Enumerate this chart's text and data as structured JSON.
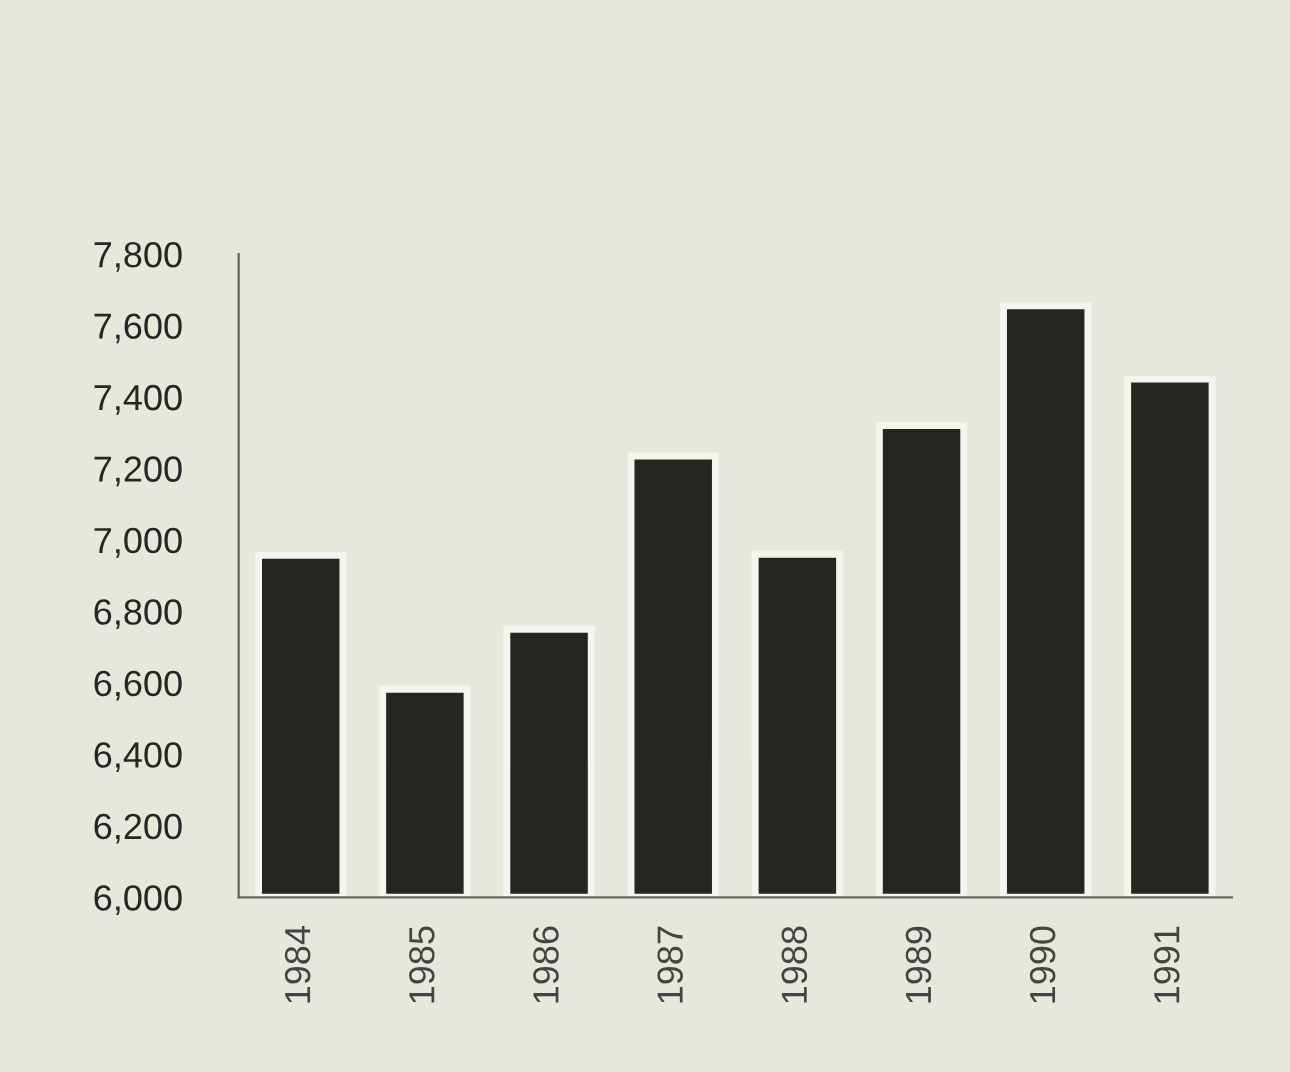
{
  "chart_data": {
    "type": "bar",
    "categories": [
      "1984",
      "1985",
      "1986",
      "1987",
      "1988",
      "1989",
      "1990",
      "1991"
    ],
    "values": [
      6957,
      6582,
      6750,
      7235,
      6960,
      7320,
      7655,
      7450
    ],
    "color": "#262621",
    "ylim": [
      6000,
      7800
    ],
    "yticks": [
      {
        "value": 6000,
        "label": "6,000"
      },
      {
        "value": 6200,
        "label": "6,200"
      },
      {
        "value": 6400,
        "label": "6,400"
      },
      {
        "value": 6600,
        "label": "6,600"
      },
      {
        "value": 6800,
        "label": "6,800"
      },
      {
        "value": 7000,
        "label": "7,000"
      },
      {
        "value": 7200,
        "label": "7,200"
      },
      {
        "value": 7400,
        "label": "7,400"
      },
      {
        "value": 7600,
        "label": "7,600"
      },
      {
        "value": 7800,
        "label": "7,800"
      }
    ],
    "grid": false
  }
}
